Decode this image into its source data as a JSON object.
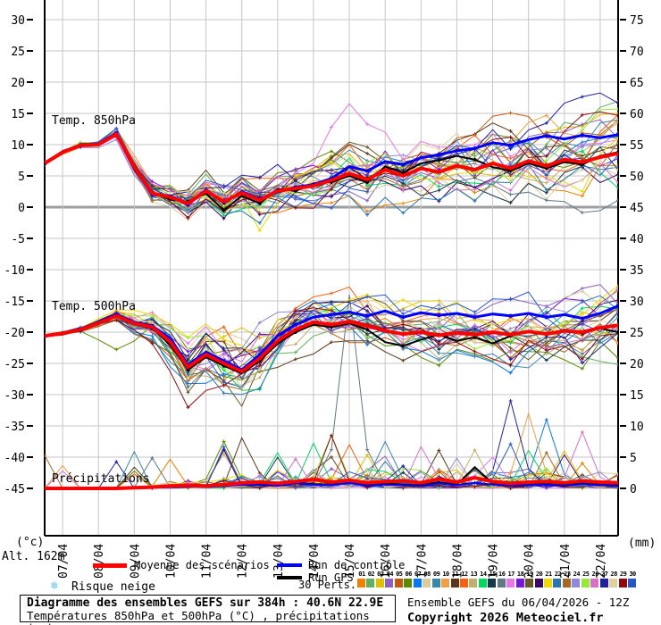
{
  "axes": {
    "unit_left": "(°c)",
    "unit_right": "(mm)",
    "alt_label": "Alt. 162m",
    "left_ticks": [
      30,
      25,
      20,
      15,
      10,
      5,
      0,
      -5,
      -10,
      -15,
      -20,
      -25,
      -30,
      -35,
      -40,
      -45
    ],
    "right_ticks": [
      75,
      70,
      65,
      60,
      55,
      50,
      45,
      40,
      35,
      30,
      25,
      20,
      15,
      10,
      5,
      0
    ],
    "x_ticks": [
      "07/04",
      "08/04",
      "09/04",
      "10/04",
      "11/04",
      "12/04",
      "13/04",
      "14/04",
      "15/04",
      "16/04",
      "17/04",
      "18/04",
      "19/04",
      "20/04",
      "21/04",
      "22/04"
    ]
  },
  "panels": {
    "t850_label": "Temp. 850hPa",
    "t500_label": "Temp. 500hPa",
    "precip_label": "Précipitations"
  },
  "legend": {
    "mean_label": "Moyenne des scénarios",
    "control_label": "Run de contrôle",
    "gfs_label": "Run GFS",
    "perts_label": "30 Perts.",
    "snow_label": "Risque neige",
    "snow_icon": "❄",
    "member_ids": [
      "01",
      "02",
      "03",
      "04",
      "05",
      "06",
      "07",
      "08",
      "09",
      "10",
      "11",
      "12",
      "13",
      "14",
      "15",
      "16",
      "17",
      "18",
      "19",
      "20",
      "21",
      "22",
      "23",
      "24",
      "25",
      "26",
      "27",
      "28",
      "29",
      "30"
    ],
    "member_colors": [
      "#F08000",
      "#60B060",
      "#E0C000",
      "#9060C0",
      "#C05A10",
      "#5A8A00",
      "#0878F0",
      "#D8CCA0",
      "#3888A8",
      "#F0A040",
      "#583818",
      "#F86010",
      "#C0B070",
      "#00D860",
      "#183848",
      "#607888",
      "#E878E8",
      "#7818D8",
      "#685828",
      "#380868",
      "#F0D800",
      "#2878B0",
      "#A86828",
      "#9088D8",
      "#98E838",
      "#D870C8",
      "#2020A0",
      "#E0D0A0",
      "#900810",
      "#2858C8"
    ]
  },
  "footer": {
    "title": "Diagramme des ensembles GEFS sur 384h : 40.6N 22.9E",
    "subtitle": "Températures 850hPa et 500hPa (°C) , précipitations (mm)",
    "run_info": "Ensemble GEFS du 06/04/2026 - 12Z",
    "copyright": "Copyright 2026 Meteociel.fr"
  },
  "colors": {
    "mean": "#FF0000",
    "control": "#0000FF",
    "gfs": "#000000",
    "grid": "#C6C6C6",
    "zero_line": "#9E9E9E",
    "axis": "#000000",
    "snow": "#5EC0EA"
  },
  "chart_data": {
    "type": "line",
    "title": "Diagramme des ensembles GEFS sur 384h : 40.6N 22.9E",
    "x_hours_step": 12,
    "hours_total": 384,
    "x_start_label": "06/04/2026 12Z",
    "ylim_temp_c": [
      -45,
      30
    ],
    "ylim_precip_mm": [
      0,
      75
    ],
    "grid": true,
    "legend_position": "bottom",
    "series": [
      {
        "name": "mean_850",
        "panel": "t850",
        "values": [
          7.0,
          8.8,
          9.9,
          10.0,
          11.7,
          6.5,
          2.2,
          1.6,
          0.6,
          2.6,
          0.9,
          2.3,
          1.1,
          2.6,
          3.0,
          3.4,
          4.3,
          5.4,
          4.4,
          6.0,
          5.0,
          6.2,
          5.6,
          6.6,
          6.0,
          7.0,
          6.2,
          7.4,
          6.6,
          7.6,
          7.2,
          8.0,
          8.6
        ]
      },
      {
        "name": "control_850",
        "panel": "t850",
        "values": [
          7.0,
          8.8,
          9.9,
          10.1,
          11.9,
          6.3,
          2.0,
          1.8,
          0.4,
          2.8,
          0.7,
          2.5,
          1.3,
          2.4,
          3.2,
          3.6,
          4.6,
          6.5,
          5.8,
          7.3,
          6.8,
          7.9,
          8.4,
          9.0,
          9.4,
          10.3,
          9.9,
          10.8,
          11.4,
          10.9,
          11.5,
          11.1,
          11.6
        ]
      },
      {
        "name": "gfs_850",
        "panel": "t850",
        "values": [
          7.0,
          8.7,
          9.8,
          10.0,
          11.6,
          6.8,
          2.4,
          1.2,
          0.9,
          2.2,
          -0.5,
          1.8,
          0.6,
          2.9,
          2.6,
          3.8,
          4.0,
          5.0,
          4.0,
          6.5,
          5.5,
          7.0,
          7.5,
          8.2,
          7.6,
          6.4,
          5.8,
          7.0,
          6.2,
          7.2,
          6.8,
          8.2,
          8.8
        ]
      },
      {
        "name": "mean_500",
        "panel": "t500",
        "values": [
          -20.6,
          -20.2,
          -19.6,
          -18.6,
          -17.4,
          -18.6,
          -19.2,
          -21.5,
          -25.6,
          -23.6,
          -25.0,
          -26.3,
          -24.2,
          -21.4,
          -19.6,
          -18.4,
          -18.8,
          -18.3,
          -19.0,
          -19.8,
          -20.3,
          -20.0,
          -20.5,
          -20.1,
          -20.4,
          -20.0,
          -20.4,
          -19.9,
          -20.3,
          -19.8,
          -20.0,
          -19.3,
          -18.9
        ]
      },
      {
        "name": "control_500",
        "panel": "t500",
        "values": [
          -20.6,
          -20.2,
          -19.5,
          -18.5,
          -17.2,
          -18.4,
          -19.0,
          -21.0,
          -25.2,
          -23.2,
          -24.6,
          -26.0,
          -23.6,
          -20.6,
          -18.8,
          -17.6,
          -17.2,
          -16.8,
          -17.4,
          -16.6,
          -17.6,
          -16.9,
          -17.3,
          -17.0,
          -17.6,
          -17.1,
          -17.4,
          -17.0,
          -17.6,
          -17.2,
          -17.8,
          -17.0,
          -15.8
        ]
      },
      {
        "name": "gfs_500",
        "panel": "t500",
        "values": [
          -20.6,
          -20.3,
          -19.7,
          -18.7,
          -17.5,
          -18.8,
          -19.4,
          -22.0,
          -26.0,
          -24.0,
          -25.4,
          -26.6,
          -24.6,
          -21.8,
          -20.0,
          -18.8,
          -19.2,
          -18.6,
          -19.6,
          -21.6,
          -22.2,
          -21.2,
          -20.4,
          -21.4,
          -20.8,
          -21.8,
          -20.6,
          -19.8,
          -20.4,
          -19.6,
          -20.2,
          -19.4,
          -20.0
        ]
      },
      {
        "name": "mean_precip",
        "panel": "precip",
        "values": [
          0,
          0,
          0,
          0,
          0,
          0.1,
          0.2,
          0.4,
          0.5,
          0.4,
          0.6,
          0.9,
          1.0,
          0.8,
          1.1,
          1.4,
          1.0,
          1.3,
          0.9,
          1.1,
          1.2,
          0.9,
          1.5,
          1.0,
          1.7,
          1.1,
          0.8,
          1.0,
          1.1,
          0.9,
          1.2,
          1.0,
          0.9
        ]
      },
      {
        "name": "control_precip",
        "panel": "precip",
        "values": [
          0,
          0,
          0,
          0,
          0,
          0,
          0.1,
          0.2,
          0.3,
          0.2,
          0.4,
          0.6,
          0.5,
          0.4,
          0.8,
          0.6,
          0.5,
          0.9,
          0.4,
          0.6,
          0.5,
          0.4,
          0.8,
          0.5,
          0.9,
          0.6,
          0.4,
          0.5,
          0.6,
          0.4,
          0.7,
          0.5,
          0.4
        ]
      },
      {
        "name": "gfs_precip",
        "panel": "precip",
        "values": [
          0,
          0,
          0,
          0,
          0,
          0,
          0.2,
          0.3,
          0.4,
          0.3,
          0.5,
          0.8,
          0.6,
          0.5,
          0.9,
          0.7,
          0.6,
          1.0,
          0.5,
          0.8,
          0.6,
          0.5,
          1.0,
          0.6,
          3.4,
          0.8,
          0.5,
          0.6,
          0.8,
          0.5,
          0.9,
          0.6,
          0.5
        ]
      }
    ],
    "ensemble": {
      "n_members": 30,
      "spread_850": [
        0.3,
        0.4,
        0.5,
        0.7,
        0.9,
        1.2,
        1.6,
        2.0,
        2.3,
        2.5,
        2.6,
        2.8,
        3.0,
        3.0,
        3.0,
        3.2,
        3.4,
        3.6,
        3.6,
        3.6,
        3.6,
        3.7,
        3.7,
        3.8,
        3.8,
        3.9,
        4.0,
        4.0,
        4.1,
        4.2,
        4.2,
        4.3,
        4.4
      ],
      "spread_500": [
        0.3,
        0.4,
        0.5,
        0.8,
        1.0,
        1.4,
        2.0,
        3.0,
        3.8,
        4.2,
        4.5,
        4.8,
        4.6,
        4.2,
        3.8,
        3.4,
        3.2,
        3.0,
        3.0,
        3.0,
        3.0,
        3.1,
        3.2,
        3.2,
        3.3,
        3.3,
        3.4,
        3.4,
        3.5,
        3.6,
        3.6,
        3.7,
        3.8
      ],
      "precip_activity": [
        0,
        0,
        0,
        0,
        0,
        0.1,
        0.2,
        0.4,
        0.5,
        0.5,
        0.6,
        0.7,
        1,
        1,
        0.8,
        1,
        1,
        1,
        1,
        0.9,
        1,
        1,
        1,
        1,
        1,
        1,
        0.9,
        1,
        1,
        0.9,
        1,
        1,
        0.8
      ],
      "precip_events": [
        {
          "member": 16,
          "index": 17,
          "peak": 31
        },
        {
          "member": 25,
          "index": 16,
          "peak": 8.5
        },
        {
          "member": 12,
          "index": 17,
          "peak": 7
        },
        {
          "member": 27,
          "index": 26,
          "peak": 14
        },
        {
          "member": 10,
          "index": 27,
          "peak": 12
        },
        {
          "member": 7,
          "index": 28,
          "peak": 11
        },
        {
          "member": 26,
          "index": 30,
          "peak": 9
        },
        {
          "member": 6,
          "index": 10,
          "peak": 7.5
        },
        {
          "member": 9,
          "index": 19,
          "peak": 7.5
        },
        {
          "member": 13,
          "index": 10,
          "peak": 5.5
        },
        {
          "member": 3,
          "index": 29,
          "peak": 6
        },
        {
          "member": 17,
          "index": 25,
          "peak": 5
        }
      ],
      "temp_anomalies": [
        {
          "panel": "t850",
          "member": 17,
          "index": 17,
          "delta": 7
        },
        {
          "panel": "t850",
          "member": 21,
          "index": 12,
          "delta": -5
        },
        {
          "panel": "t850",
          "member": 11,
          "index": 32,
          "delta": 5
        },
        {
          "panel": "t850",
          "member": 29,
          "index": 31,
          "delta": 4
        },
        {
          "panel": "t500",
          "member": 27,
          "index": 26,
          "delta": -7
        },
        {
          "panel": "t500",
          "member": 27,
          "index": 30,
          "delta": -6
        },
        {
          "panel": "t500",
          "member": 6,
          "index": 4,
          "delta": -5
        },
        {
          "panel": "t500",
          "member": 19,
          "index": 19,
          "delta": 3
        }
      ]
    }
  }
}
